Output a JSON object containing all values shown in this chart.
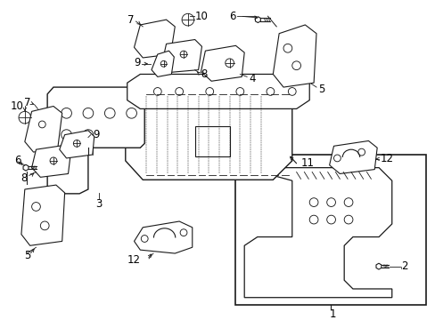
{
  "background_color": "#ffffff",
  "line_color": "#1a1a1a",
  "label_color": "#000000",
  "fig_width": 4.89,
  "fig_height": 3.6,
  "dpi": 100,
  "label_fontsize": 8.5,
  "lw": 0.8
}
